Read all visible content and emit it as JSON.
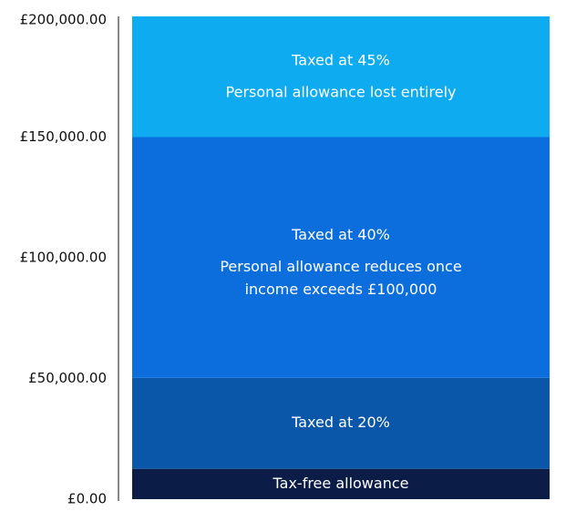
{
  "chart_data": {
    "type": "stacked-bar",
    "categories": [
      null
    ],
    "series": [
      {
        "name": "Tax-free allowance",
        "color": "#0b1d47",
        "values": [
          12570
        ],
        "annotation": []
      },
      {
        "name": "Taxed at 20%",
        "color": "#0a56a9",
        "values": [
          37700
        ],
        "annotation": []
      },
      {
        "name": "Taxed at 40%",
        "color": "#0b6edc",
        "values": [
          99730
        ],
        "annotation": [
          "Personal allowance reduces once",
          "income exceeds £100,000"
        ]
      },
      {
        "name": "Taxed at 45%",
        "color": "#0eabf1",
        "values": [
          50000
        ],
        "annotation": [
          "Personal allowance lost entirely"
        ]
      }
    ],
    "ylim": [
      0,
      200000
    ],
    "yticks": [
      {
        "value": 0,
        "label": "£0.00"
      },
      {
        "value": 50000,
        "label": "£50,000.00"
      },
      {
        "value": 100000,
        "label": "£100,000.00"
      },
      {
        "value": 150000,
        "label": "£150,000.00"
      },
      {
        "value": 200000,
        "label": "£200,000.00"
      }
    ]
  }
}
